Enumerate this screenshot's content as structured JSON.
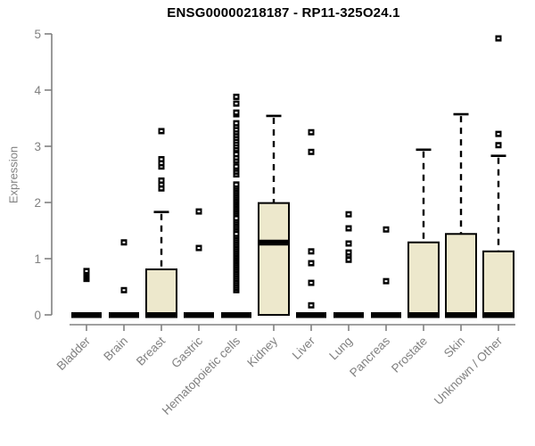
{
  "title": "ENSG00000218187 - RP11-325O24.1",
  "chart_data": {
    "type": "boxplot",
    "title": "ENSG00000218187 - RP11-325O24.1",
    "xlabel": "",
    "ylabel": "Expression",
    "ylim": [
      0,
      5
    ],
    "yticks": [
      0,
      1,
      2,
      3,
      4,
      5
    ],
    "grid": false,
    "legend": "none",
    "box_fill_color": "#ede8cc",
    "box_border_color": "#000000",
    "axis_color": "#808080",
    "label_color": "#808080",
    "title_color": "#000000",
    "categories": [
      "Bladder",
      "Brain",
      "Breast",
      "Gastric",
      "Hematopoietic cells",
      "Kidney",
      "Liver",
      "Lung",
      "Pancreas",
      "Prostate",
      "Skin",
      "Unknown / Other"
    ],
    "boxes": [
      {
        "category": "Bladder",
        "q1": 0,
        "median": 0,
        "q3": 0,
        "whisker_low": 0,
        "whisker_high": 0,
        "outliers": [
          0.64,
          0.675,
          0.71,
          0.745,
          0.78
        ]
      },
      {
        "category": "Brain",
        "q1": 0,
        "median": 0,
        "q3": 0,
        "whisker_low": 0,
        "whisker_high": 0,
        "outliers": [
          0.44,
          1.29
        ]
      },
      {
        "category": "Breast",
        "q1": 0,
        "median": 0,
        "q3": 0.81,
        "whisker_low": 0,
        "whisker_high": 1.83,
        "outliers": [
          2.25,
          2.32,
          2.39,
          2.64,
          2.7,
          2.77,
          3.27
        ]
      },
      {
        "category": "Gastric",
        "q1": 0,
        "median": 0,
        "q3": 0,
        "whisker_low": 0,
        "whisker_high": 0,
        "outliers": [
          1.19,
          1.84
        ]
      },
      {
        "category": "Hematopoietic cells",
        "q1": 0,
        "median": 0,
        "q3": 0,
        "whisker_low": 0,
        "whisker_high": 0,
        "outliers": [
          0.44,
          0.48,
          0.52,
          0.56,
          0.6,
          0.64,
          0.68,
          0.72,
          0.76,
          0.8,
          0.84,
          0.88,
          0.92,
          0.96,
          1.0,
          1.04,
          1.08,
          1.12,
          1.16,
          1.2,
          1.24,
          1.28,
          1.32,
          1.36,
          1.4,
          1.44,
          1.52,
          1.56,
          1.6,
          1.64,
          1.68,
          1.72,
          1.8,
          1.84,
          1.88,
          1.92,
          1.96,
          2.0,
          2.04,
          2.08,
          2.12,
          2.16,
          2.2,
          2.24,
          2.28,
          2.32,
          2.5,
          2.55,
          2.6,
          2.64,
          2.75,
          2.8,
          2.86,
          2.95,
          3.0,
          3.05,
          3.1,
          3.15,
          3.2,
          3.25,
          3.3,
          3.36,
          3.41,
          3.57,
          3.6,
          3.76,
          3.88
        ]
      },
      {
        "category": "Kidney",
        "q1": 0,
        "median": 1.29,
        "q3": 1.99,
        "whisker_low": 0,
        "whisker_high": 3.54,
        "outliers": []
      },
      {
        "category": "Liver",
        "q1": 0,
        "median": 0,
        "q3": 0,
        "whisker_low": 0,
        "whisker_high": 0,
        "outliers": [
          0.17,
          0.57,
          0.92,
          1.13,
          2.9,
          3.25
        ]
      },
      {
        "category": "Lung",
        "q1": 0,
        "median": 0,
        "q3": 0,
        "whisker_low": 0,
        "whisker_high": 0,
        "outliers": [
          0.98,
          1.06,
          1.11,
          1.27,
          1.54,
          1.79
        ]
      },
      {
        "category": "Pancreas",
        "q1": 0,
        "median": 0,
        "q3": 0,
        "whisker_low": 0,
        "whisker_high": 0,
        "outliers": [
          0.6,
          1.52
        ]
      },
      {
        "category": "Prostate",
        "q1": 0,
        "median": 0,
        "q3": 1.29,
        "whisker_low": 0,
        "whisker_high": 2.94,
        "outliers": []
      },
      {
        "category": "Skin",
        "q1": 0,
        "median": 0,
        "q3": 1.44,
        "whisker_low": 0,
        "whisker_high": 3.57,
        "outliers": []
      },
      {
        "category": "Unknown / Other",
        "q1": 0,
        "median": 0,
        "q3": 1.13,
        "whisker_low": 0,
        "whisker_high": 2.83,
        "outliers": [
          3.02,
          3.22,
          4.92
        ]
      }
    ]
  }
}
